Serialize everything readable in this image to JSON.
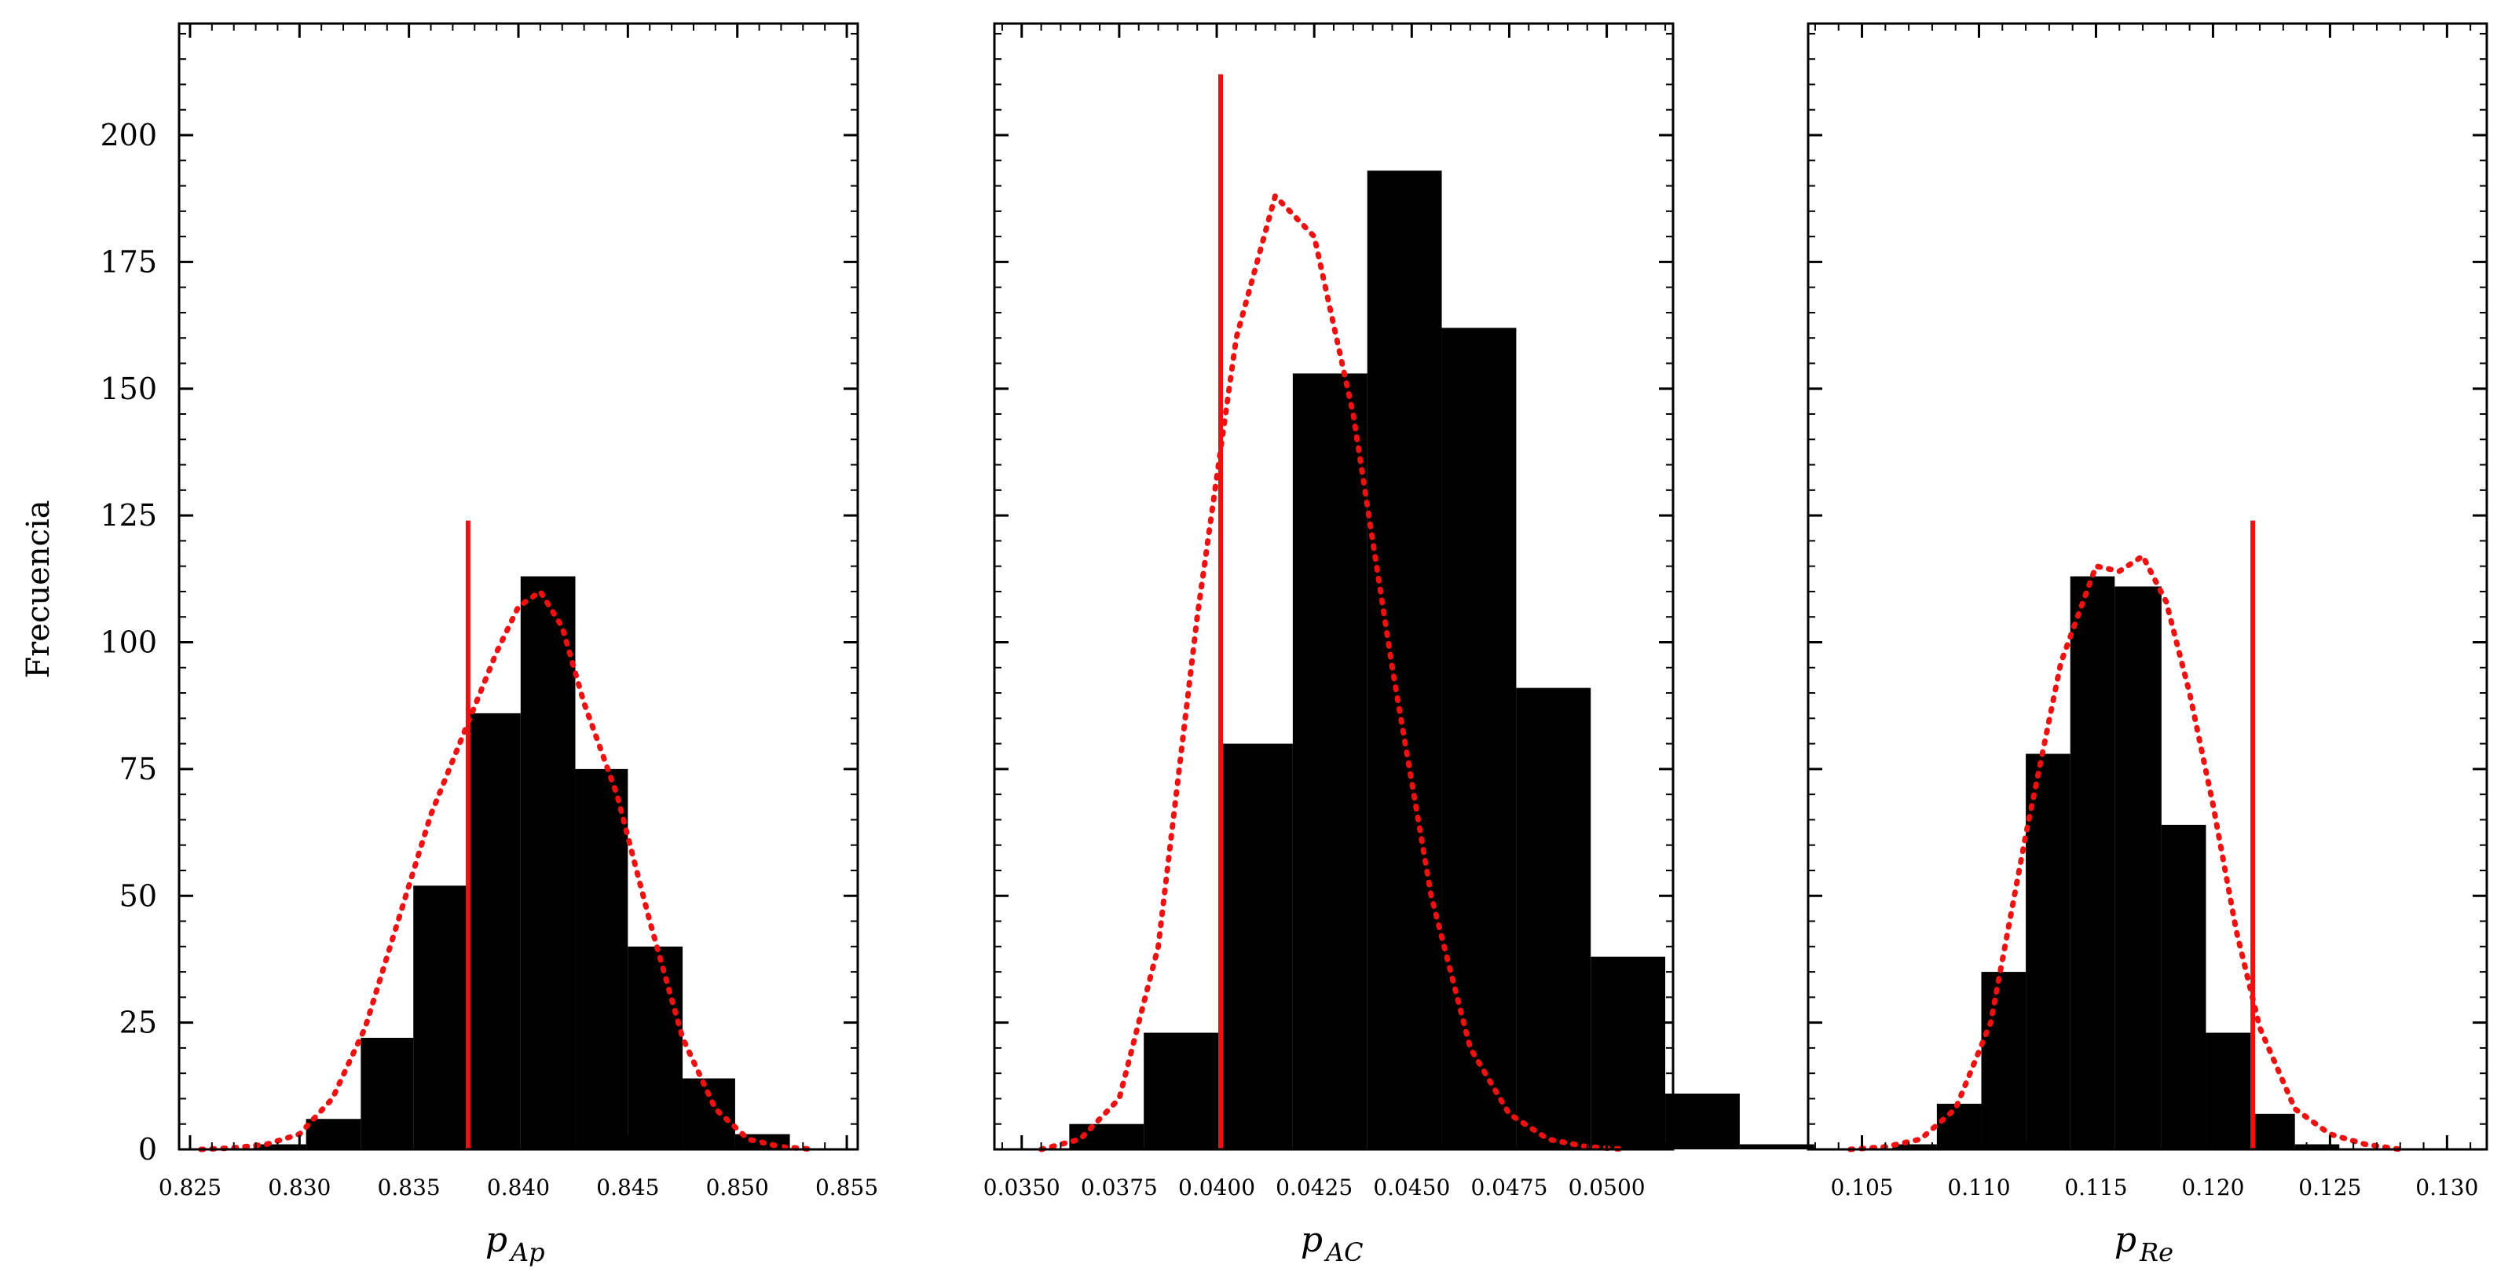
{
  "figure": {
    "ylabel": "Frecuencia",
    "colors": {
      "bars": "#000000",
      "fit": "#ee1111",
      "ref": "#ee1111",
      "frame": "#000000"
    }
  },
  "chart_data": [
    {
      "type": "bar",
      "xlabel": "p",
      "xlabel_sub": "Ap",
      "ylabel": "Frecuencia",
      "xlim": [
        0.8245,
        0.8555
      ],
      "ylim": [
        0,
        222
      ],
      "xticks": [
        "0.825",
        "0.830",
        "0.835",
        "0.840",
        "0.845",
        "0.850",
        "0.855"
      ],
      "xtick_values": [
        0.825,
        0.83,
        0.835,
        0.84,
        0.845,
        0.85,
        0.855
      ],
      "yticks": [
        "0",
        "25",
        "50",
        "75",
        "100",
        "125",
        "150",
        "175",
        "200"
      ],
      "ytick_values": [
        0,
        25,
        50,
        75,
        100,
        125,
        150,
        175,
        200
      ],
      "bin_edges": [
        0.8279,
        0.8303,
        0.8328,
        0.8352,
        0.8377,
        0.8401,
        0.8426,
        0.845,
        0.8475,
        0.8499,
        0.8524
      ],
      "counts": [
        1,
        6,
        22,
        52,
        86,
        113,
        75,
        40,
        14,
        3
      ],
      "reference_x": 0.8377,
      "reference_ymax": 124,
      "fit_curve": {
        "x": [
          0.8255,
          0.827,
          0.8285,
          0.83,
          0.8315,
          0.833,
          0.8345,
          0.836,
          0.8375,
          0.839,
          0.84,
          0.841,
          0.842,
          0.843,
          0.8445,
          0.846,
          0.8475,
          0.849,
          0.8505,
          0.852,
          0.8535
        ],
        "y": [
          0,
          0.3,
          1,
          3,
          10,
          24,
          45,
          66,
          82,
          98,
          107,
          110,
          103,
          88,
          70,
          45,
          22,
          8,
          2,
          0.5,
          0
        ]
      }
    },
    {
      "type": "bar",
      "xlabel": "p",
      "xlabel_sub": "AC",
      "ylabel": "",
      "xlim": [
        0.0343,
        0.0517
      ],
      "ylim": [
        0,
        222
      ],
      "xticks": [
        "0.0350",
        "0.0375",
        "0.0400",
        "0.0425",
        "0.0450",
        "0.0475",
        "0.0500"
      ],
      "xtick_values": [
        0.035,
        0.0375,
        0.04,
        0.0425,
        0.045,
        0.0475,
        0.05
      ],
      "yticks": [],
      "ytick_values": [
        0,
        25,
        50,
        75,
        100,
        125,
        150,
        175,
        200
      ],
      "bin_edges": [
        0.03622,
        0.03813,
        0.04004,
        0.04195,
        0.04386,
        0.04577,
        0.04768,
        0.04959,
        0.0515,
        0.05341,
        0.05532
      ],
      "bin_edges_note": "",
      "counts": [
        5,
        23,
        80,
        153,
        193,
        162,
        91,
        38,
        11,
        1
      ],
      "reference_x": 0.0401,
      "reference_ymax": 212,
      "fit_curve": {
        "x": [
          0.0355,
          0.0365,
          0.0375,
          0.0385,
          0.0395,
          0.0405,
          0.0415,
          0.0425,
          0.0435,
          0.0445,
          0.0455,
          0.0465,
          0.0475,
          0.0485,
          0.0495,
          0.0505
        ],
        "y": [
          0,
          2,
          10,
          40,
          105,
          160,
          188,
          180,
          145,
          95,
          50,
          20,
          7,
          2,
          0.5,
          0
        ]
      }
    },
    {
      "type": "bar",
      "xlabel": "p",
      "xlabel_sub": "Re",
      "ylabel": "",
      "xlim": [
        0.1027,
        0.1317
      ],
      "ylim": [
        0,
        222
      ],
      "xticks": [
        "0.105",
        "0.110",
        "0.115",
        "0.120",
        "0.125",
        "0.130"
      ],
      "xtick_values": [
        0.105,
        0.11,
        0.115,
        0.12,
        0.125,
        0.13
      ],
      "yticks": [],
      "ytick_values": [
        0,
        25,
        50,
        75,
        100,
        125,
        150,
        175,
        200
      ],
      "bin_edges": [
        0.1063,
        0.1082,
        0.1101,
        0.112,
        0.1139,
        0.1158,
        0.1178,
        0.1197,
        0.1216,
        0.1235,
        0.1254
      ],
      "counts": [
        1,
        9,
        35,
        78,
        113,
        111,
        64,
        23,
        7,
        1
      ],
      "reference_x": 0.1217,
      "reference_ymax": 124,
      "fit_curve": {
        "x": [
          0.1045,
          0.106,
          0.1075,
          0.109,
          0.1105,
          0.112,
          0.1135,
          0.115,
          0.116,
          0.117,
          0.118,
          0.119,
          0.12,
          0.121,
          0.122,
          0.1235,
          0.125,
          0.1265,
          0.128
        ],
        "y": [
          0,
          0.5,
          2,
          8,
          25,
          62,
          96,
          115,
          114,
          117,
          108,
          90,
          68,
          43,
          24,
          8,
          3,
          1,
          0
        ]
      }
    }
  ]
}
